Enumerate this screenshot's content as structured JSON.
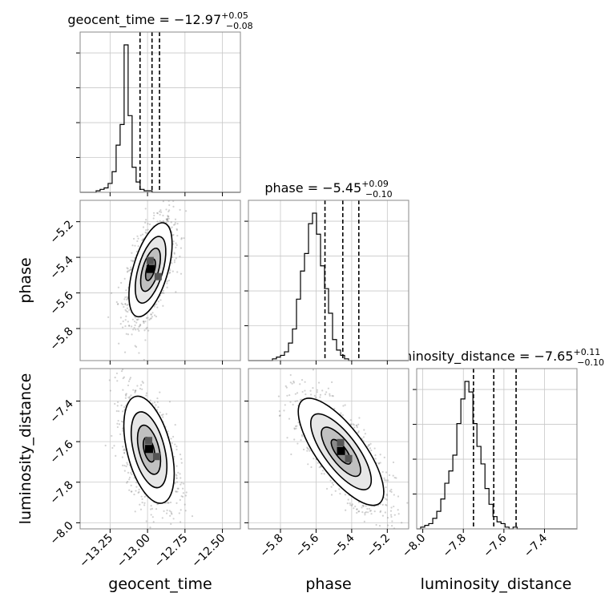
{
  "chart_data": {
    "type": "corner",
    "parameters": [
      "geocent_time",
      "phase",
      "luminosity_distance"
    ],
    "panel_titles": [
      {
        "param": "geocent_time",
        "prefix": "geocent_time = ",
        "value": "−12.97",
        "plus": "+0.05",
        "minus": "−0.08"
      },
      {
        "param": "phase",
        "prefix": "phase = ",
        "value": "−5.45",
        "plus": "+0.09",
        "minus": "−0.10"
      },
      {
        "param": "luminosity_distance",
        "prefix": "luminosity_distance = ",
        "value": "−7.65",
        "plus": "+0.11",
        "minus": "−0.10"
      }
    ],
    "axis_labels": {
      "x": [
        "geocent_time",
        "phase",
        "luminosity_distance"
      ],
      "y": [
        "phase",
        "luminosity_distance"
      ]
    },
    "ranges": {
      "geocent_time": [
        -13.45,
        -12.38
      ],
      "phase": [
        -5.98,
        -5.08
      ],
      "luminosity_distance": [
        -8.03,
        -7.24
      ]
    },
    "ticks": {
      "geocent_time": {
        "values": [
          -13.25,
          -13.0,
          -12.75,
          -12.5
        ],
        "labels": [
          "−13.25",
          "−13.00",
          "−12.75",
          "−12.50"
        ]
      },
      "phase": {
        "values": [
          -5.8,
          -5.6,
          -5.4,
          -5.2
        ],
        "labels": [
          "−5.8",
          "−5.6",
          "−5.4",
          "−5.2"
        ]
      },
      "luminosity_distance": {
        "values": [
          -8.0,
          -7.8,
          -7.6,
          -7.4
        ],
        "labels": [
          "−8.0",
          "−7.8",
          "−7.6",
          "−7.4"
        ]
      }
    },
    "quantiles": {
      "geocent_time": [
        -13.05,
        -12.97,
        -12.92
      ],
      "phase": [
        -5.55,
        -5.45,
        -5.36
      ],
      "luminosity_distance": [
        -7.75,
        -7.65,
        -7.54
      ]
    },
    "histograms": {
      "geocent_time": {
        "edges_start": -13.45,
        "bin_width": 0.0267,
        "counts": [
          0,
          0,
          0,
          0,
          0.01,
          0.02,
          0.03,
          0.06,
          0.14,
          0.32,
          0.46,
          1.0,
          0.52,
          0.17,
          0.07,
          0.02,
          0.01,
          0.01,
          0,
          0,
          0,
          0,
          0,
          0,
          0,
          0,
          0,
          0,
          0,
          0,
          0,
          0,
          0,
          0,
          0,
          0,
          0,
          0,
          0,
          0
        ]
      },
      "phase": {
        "edges_start": -5.98,
        "bin_width": 0.0225,
        "counts": [
          0,
          0,
          0,
          0,
          0,
          0,
          0.01,
          0.02,
          0.03,
          0.05,
          0.1,
          0.18,
          0.35,
          0.51,
          0.61,
          0.78,
          0.84,
          0.72,
          0.54,
          0.41,
          0.27,
          0.12,
          0.06,
          0.03,
          0.01,
          0,
          0,
          0,
          0,
          0,
          0,
          0,
          0,
          0,
          0,
          0,
          0,
          0,
          0,
          0
        ]
      },
      "luminosity_distance": {
        "edges_start": -8.03,
        "bin_width": 0.0198,
        "counts": [
          0,
          0.01,
          0.02,
          0.03,
          0.06,
          0.1,
          0.17,
          0.26,
          0.33,
          0.42,
          0.6,
          0.74,
          0.84,
          0.78,
          0.6,
          0.47,
          0.37,
          0.23,
          0.14,
          0.07,
          0.04,
          0.03,
          0.01,
          0,
          0.01,
          0,
          0,
          0,
          0,
          0,
          0,
          0,
          0,
          0,
          0,
          0,
          0,
          0,
          0,
          0
        ]
      }
    },
    "samples_2d": [
      {
        "x": "geocent_time",
        "y": "phase",
        "mean": [
          -12.98,
          -5.47
        ],
        "sd": [
          0.06,
          0.11
        ],
        "corr": 0.55
      },
      {
        "x": "geocent_time",
        "y": "luminosity_distance",
        "mean": [
          -12.99,
          -7.64
        ],
        "sd": [
          0.07,
          0.11
        ],
        "corr": -0.45
      },
      {
        "x": "phase",
        "y": "luminosity_distance",
        "mean": [
          -5.46,
          -7.65
        ],
        "sd": [
          0.1,
          0.11
        ],
        "corr": -0.75
      }
    ],
    "grid": true
  }
}
